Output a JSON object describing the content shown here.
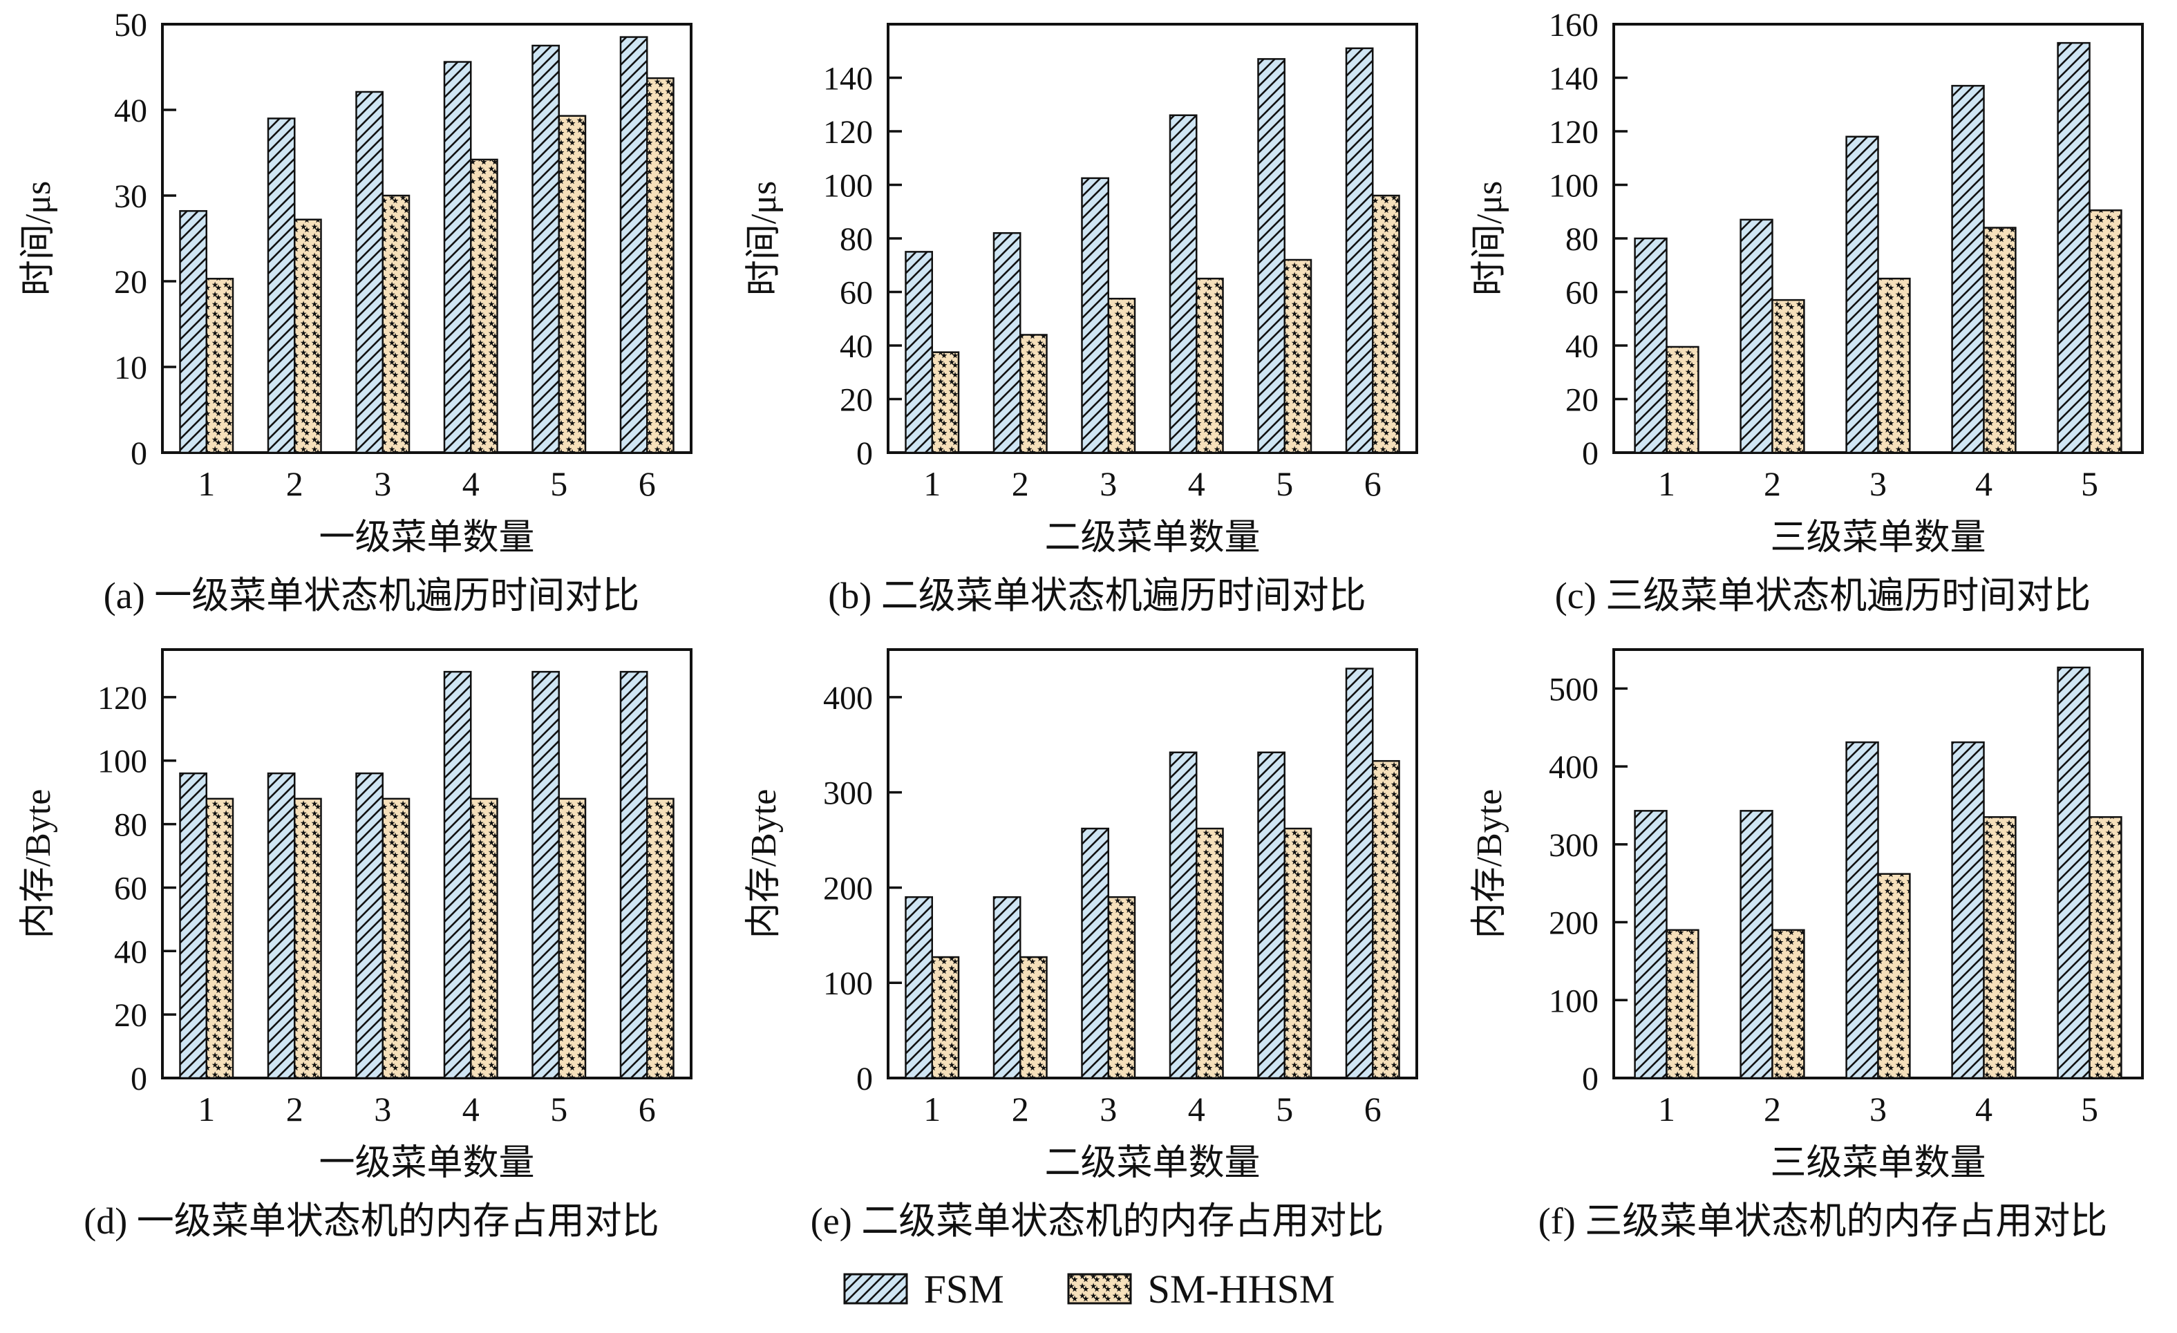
{
  "figure": {
    "type": "bar-chart-grid",
    "rows": 2,
    "cols": 3,
    "grid": "off",
    "legend_position": "bottom-center"
  },
  "legend": {
    "fsm_label": "FSM",
    "sm_label": "SM-HHSM",
    "fsm_swatch": "blue-diagonal-hatch",
    "sm_swatch": "tan-star-pattern"
  },
  "colors": {
    "fsm_fill": "#cfe5f3",
    "hatch_line": "#111111",
    "sm_fill": "#f6e0bb",
    "star_color": "#111111",
    "bar_outline": "#111111",
    "axis_color": "#111111",
    "text_color": "#111111",
    "background": "#ffffff"
  },
  "chart_data": [
    {
      "id": "a",
      "type": "bar",
      "title": "(a) 一级菜单状态机遍历时间对比",
      "xlabel": "一级菜单数量",
      "ylabel": "时间/μs",
      "categories": [
        "1",
        "2",
        "3",
        "4",
        "5",
        "6"
      ],
      "series": [
        {
          "name": "FSM",
          "values": [
            28.2,
            39,
            42.1,
            45.6,
            47.5,
            48.5
          ]
        },
        {
          "name": "SM-HHSM",
          "values": [
            20.3,
            27.2,
            30,
            34.2,
            39.3,
            43.7
          ]
        }
      ],
      "ylim": [
        0,
        50
      ],
      "yticks": [
        0,
        10,
        20,
        30,
        40,
        50
      ]
    },
    {
      "id": "b",
      "type": "bar",
      "title": "(b) 二级菜单状态机遍历时间对比",
      "xlabel": "二级菜单数量",
      "ylabel": "时间/μs",
      "categories": [
        "1",
        "2",
        "3",
        "4",
        "5",
        "6"
      ],
      "series": [
        {
          "name": "FSM",
          "values": [
            75,
            82,
            102.5,
            126,
            147,
            151
          ]
        },
        {
          "name": "SM-HHSM",
          "values": [
            37.5,
            44,
            57.5,
            65,
            72,
            96
          ]
        }
      ],
      "ylim": [
        0,
        160
      ],
      "yticks": [
        0,
        20,
        40,
        60,
        80,
        100,
        120,
        140
      ]
    },
    {
      "id": "c",
      "type": "bar",
      "title": "(c) 三级菜单状态机遍历时间对比",
      "xlabel": "三级菜单数量",
      "ylabel": "时间/μs",
      "categories": [
        "1",
        "2",
        "3",
        "4",
        "5"
      ],
      "series": [
        {
          "name": "FSM",
          "values": [
            80,
            87,
            118,
            137,
            153
          ]
        },
        {
          "name": "SM-HHSM",
          "values": [
            39.5,
            57,
            65,
            84,
            90.5
          ]
        }
      ],
      "ylim": [
        0,
        160
      ],
      "yticks": [
        0,
        20,
        40,
        60,
        80,
        100,
        120,
        140,
        160
      ]
    },
    {
      "id": "d",
      "type": "bar",
      "title": "(d) 一级菜单状态机的内存占用对比",
      "xlabel": "一级菜单数量",
      "ylabel": "内存/Byte",
      "categories": [
        "1",
        "2",
        "3",
        "4",
        "5",
        "6"
      ],
      "series": [
        {
          "name": "FSM",
          "values": [
            96,
            96,
            96,
            128,
            128,
            128
          ]
        },
        {
          "name": "SM-HHSM",
          "values": [
            88,
            88,
            88,
            88,
            88,
            88
          ]
        }
      ],
      "ylim": [
        0,
        135
      ],
      "yticks": [
        0,
        20,
        40,
        60,
        80,
        100,
        120
      ]
    },
    {
      "id": "e",
      "type": "bar",
      "title": "(e) 二级菜单状态机的内存占用对比",
      "xlabel": "二级菜单数量",
      "ylabel": "内存/Byte",
      "categories": [
        "1",
        "2",
        "3",
        "4",
        "5",
        "6"
      ],
      "series": [
        {
          "name": "FSM",
          "values": [
            190,
            190,
            262,
            342,
            342,
            430
          ]
        },
        {
          "name": "SM-HHSM",
          "values": [
            127,
            127,
            190,
            262,
            262,
            333
          ]
        }
      ],
      "ylim": [
        0,
        450
      ],
      "yticks": [
        0,
        100,
        200,
        300,
        400
      ]
    },
    {
      "id": "f",
      "type": "bar",
      "title": "(f) 三级菜单状态机的内存占用对比",
      "xlabel": "三级菜单数量",
      "ylabel": "内存/Byte",
      "categories": [
        "1",
        "2",
        "3",
        "4",
        "5"
      ],
      "series": [
        {
          "name": "FSM",
          "values": [
            343,
            343,
            431,
            431,
            527
          ]
        },
        {
          "name": "SM-HHSM",
          "values": [
            190,
            190,
            262,
            335,
            335
          ]
        }
      ],
      "ylim": [
        0,
        550
      ],
      "yticks": [
        0,
        100,
        200,
        300,
        400,
        500
      ]
    }
  ]
}
